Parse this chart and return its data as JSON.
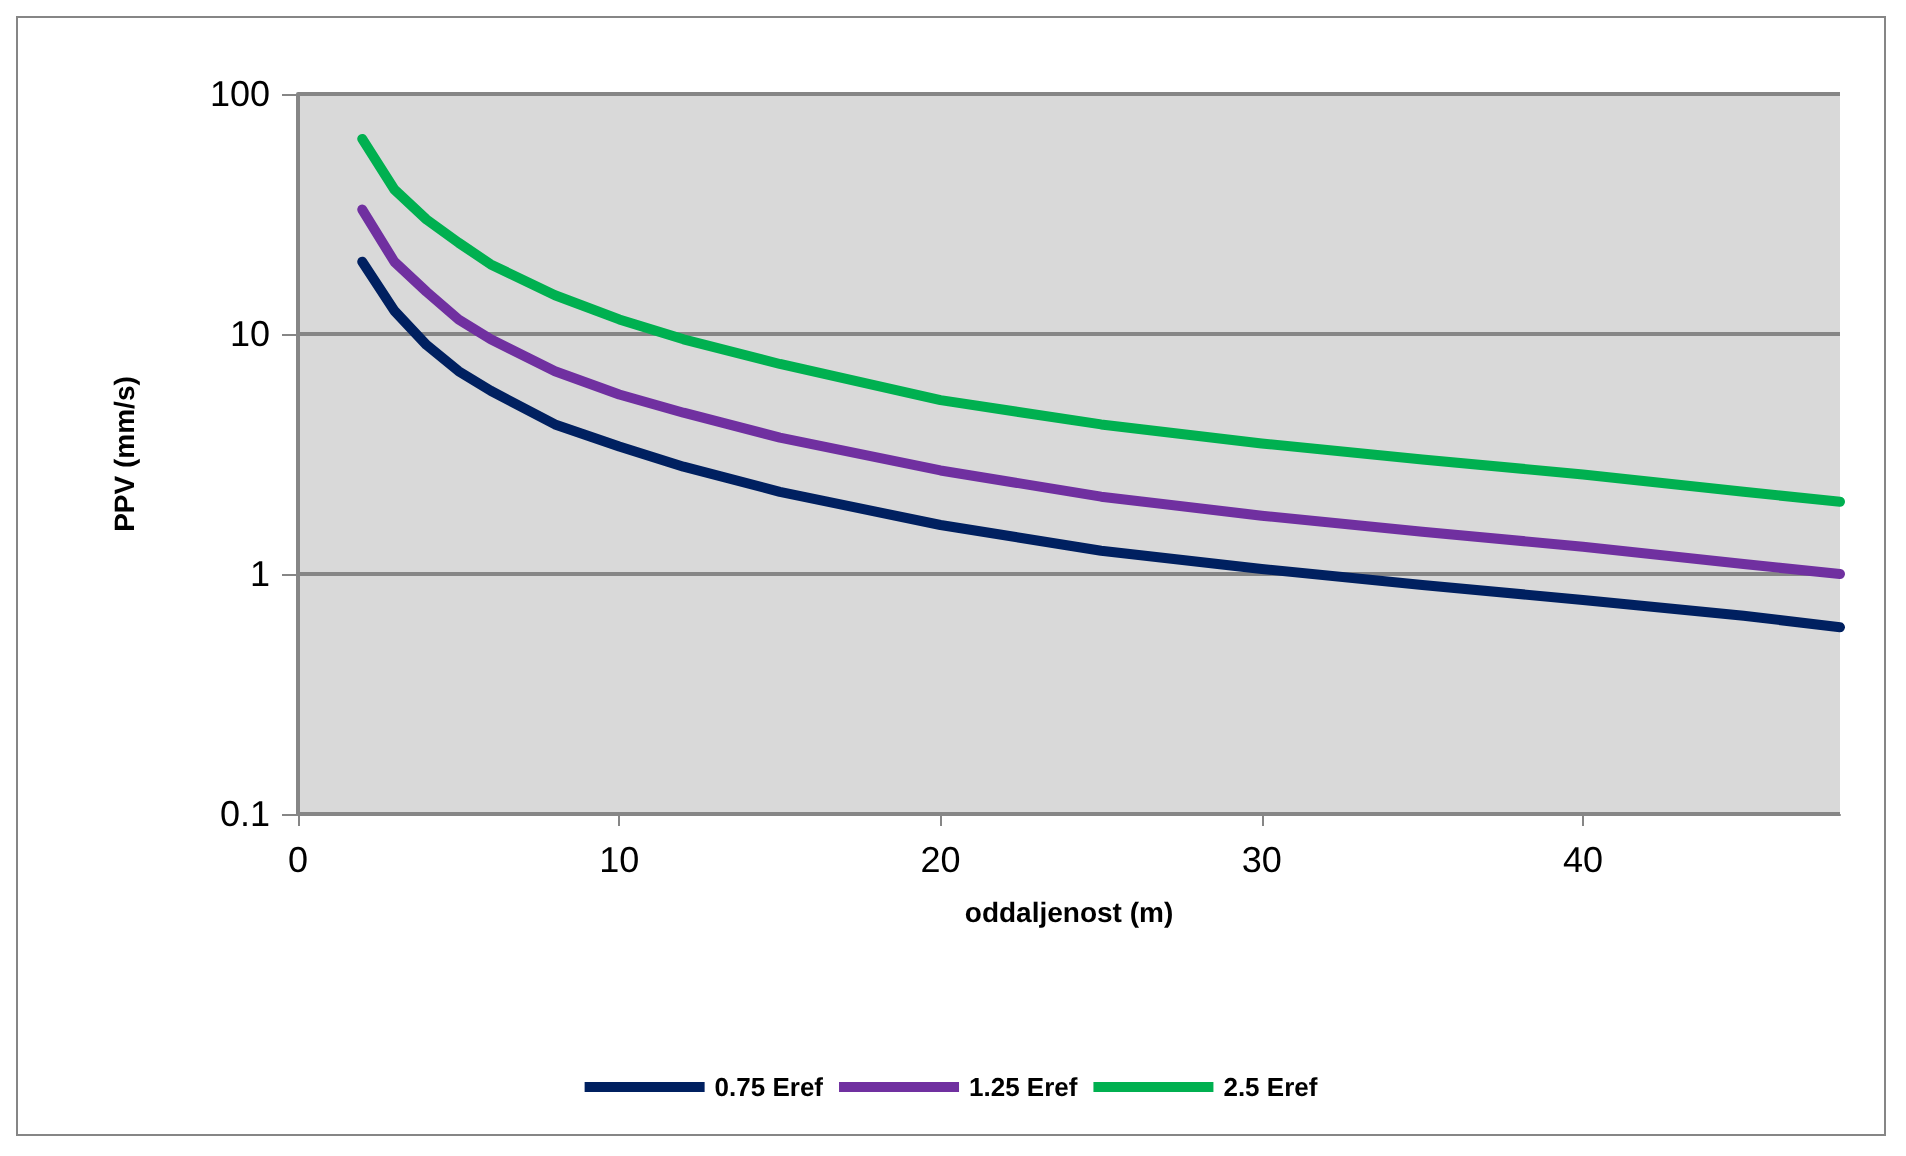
{
  "chart_data": {
    "type": "line",
    "xlabel": "oddaljenost (m)",
    "ylabel": "PPV (mm/s)",
    "x": [
      2,
      3,
      4,
      5,
      6,
      8,
      10,
      12,
      15,
      20,
      25,
      30,
      35,
      40,
      45,
      48
    ],
    "series": [
      {
        "name": "0.75 Eref",
        "color": "#002060",
        "values": [
          20,
          12.5,
          9,
          7,
          5.8,
          4.2,
          3.4,
          2.8,
          2.2,
          1.6,
          1.25,
          1.05,
          0.9,
          0.78,
          0.67,
          0.6
        ]
      },
      {
        "name": "1.25 Eref",
        "color": "#7030a0",
        "values": [
          33,
          20,
          15,
          11.5,
          9.5,
          7,
          5.6,
          4.7,
          3.7,
          2.7,
          2.1,
          1.75,
          1.5,
          1.3,
          1.1,
          1.0
        ]
      },
      {
        "name": "2.5 Eref",
        "color": "#00b050",
        "values": [
          65,
          40,
          30,
          24,
          19.5,
          14.5,
          11.5,
          9.5,
          7.5,
          5.3,
          4.2,
          3.5,
          3.0,
          2.6,
          2.2,
          2.0
        ]
      }
    ],
    "xlim": [
      0,
      48
    ],
    "xticks": [
      0,
      10,
      20,
      30,
      40
    ],
    "ylim": [
      0.1,
      100
    ],
    "yticks": [
      0.1,
      1,
      10,
      100
    ],
    "log": "y",
    "grid": "y",
    "legend": "bottom",
    "marker": "none",
    "line_style": "solid"
  }
}
